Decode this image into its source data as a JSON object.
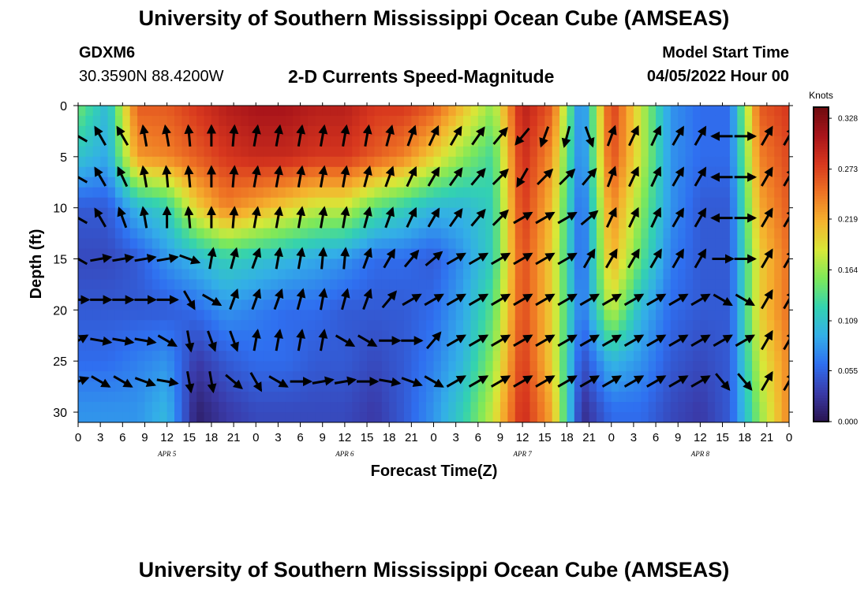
{
  "title": "University of Southern Mississippi Ocean Cube (AMSEAS)",
  "station": "GDXM6",
  "coords": "30.3590N  88.4200W",
  "subtitle": "2-D Currents Speed-Magnitude",
  "model_start_label": "Model Start Time",
  "model_start_value": "04/05/2022 Hour 00",
  "footer_title": "University of Southern Mississippi Ocean Cube (AMSEAS)",
  "chart_data": {
    "type": "heatmap",
    "xlabel": "Forecast Time(Z)",
    "ylabel": "Depth (ft)",
    "x_tick_labels": [
      "0",
      "3",
      "6",
      "9",
      "12",
      "15",
      "18",
      "21",
      "0",
      "3",
      "6",
      "9",
      "12",
      "15",
      "18",
      "21",
      "0",
      "3",
      "6",
      "9",
      "12",
      "15",
      "18",
      "21",
      "0",
      "3",
      "6",
      "9",
      "12",
      "15",
      "18",
      "21",
      "0"
    ],
    "x_hours_range": [
      0,
      96
    ],
    "day_labels": [
      {
        "label": "APR 5",
        "hour": 12
      },
      {
        "label": "APR 6",
        "hour": 36
      },
      {
        "label": "APR 7",
        "hour": 60
      },
      {
        "label": "APR 8",
        "hour": 84
      }
    ],
    "y_ticks": [
      "0",
      "5",
      "10",
      "15",
      "20",
      "25",
      "30"
    ],
    "y_range_ft": [
      0,
      31
    ],
    "colorbar": {
      "title": "Knots",
      "ticks": [
        "0.328",
        "0.273",
        "0.219",
        "0.164",
        "0.109",
        "0.055",
        "0.000"
      ],
      "range": [
        0.0,
        0.34
      ],
      "colors": [
        "#2a1450",
        "#3a3aa8",
        "#2f6ff0",
        "#33aee8",
        "#33d2b0",
        "#7de85a",
        "#d8e838",
        "#f5b32e",
        "#ee7424",
        "#d8381e",
        "#a8141a",
        "#6e0c10"
      ]
    },
    "speed_knots_grid": {
      "depths_ft": [
        0,
        5,
        10,
        15,
        20,
        25,
        30
      ],
      "hours": [
        0,
        4,
        8,
        12,
        16,
        20,
        24,
        28,
        32,
        36,
        40,
        44,
        48,
        52,
        56,
        60,
        64,
        68,
        72,
        76,
        80,
        84,
        88,
        92,
        96
      ],
      "values": [
        [
          0.15,
          0.1,
          0.26,
          0.26,
          0.28,
          0.3,
          0.31,
          0.31,
          0.3,
          0.3,
          0.28,
          0.28,
          0.26,
          0.21,
          0.16,
          0.3,
          0.26,
          0.06,
          0.28,
          0.18,
          0.08,
          0.06,
          0.06,
          0.26,
          0.28
        ],
        [
          0.11,
          0.09,
          0.23,
          0.24,
          0.26,
          0.28,
          0.29,
          0.29,
          0.28,
          0.28,
          0.26,
          0.24,
          0.2,
          0.16,
          0.13,
          0.29,
          0.23,
          0.06,
          0.27,
          0.18,
          0.08,
          0.06,
          0.06,
          0.24,
          0.27
        ],
        [
          0.05,
          0.05,
          0.1,
          0.12,
          0.2,
          0.24,
          0.22,
          0.2,
          0.18,
          0.18,
          0.14,
          0.12,
          0.1,
          0.1,
          0.12,
          0.28,
          0.21,
          0.05,
          0.24,
          0.16,
          0.08,
          0.05,
          0.05,
          0.22,
          0.26
        ],
        [
          0.04,
          0.04,
          0.05,
          0.08,
          0.1,
          0.12,
          0.11,
          0.1,
          0.09,
          0.08,
          0.06,
          0.06,
          0.05,
          0.08,
          0.12,
          0.27,
          0.2,
          0.05,
          0.22,
          0.14,
          0.07,
          0.05,
          0.05,
          0.2,
          0.25
        ],
        [
          0.05,
          0.05,
          0.05,
          0.05,
          0.06,
          0.08,
          0.07,
          0.06,
          0.06,
          0.05,
          0.05,
          0.05,
          0.06,
          0.09,
          0.14,
          0.27,
          0.2,
          0.06,
          0.18,
          0.1,
          0.06,
          0.05,
          0.05,
          0.2,
          0.25
        ],
        [
          0.06,
          0.06,
          0.07,
          0.08,
          0.03,
          0.05,
          0.06,
          0.06,
          0.05,
          0.05,
          0.04,
          0.05,
          0.07,
          0.1,
          0.16,
          0.28,
          0.2,
          0.04,
          0.1,
          0.08,
          0.05,
          0.04,
          0.05,
          0.18,
          0.24
        ],
        [
          0.08,
          0.08,
          0.08,
          0.1,
          0.01,
          0.03,
          0.04,
          0.04,
          0.04,
          0.04,
          0.03,
          0.05,
          0.08,
          0.12,
          0.18,
          0.29,
          0.22,
          0.02,
          0.06,
          0.06,
          0.04,
          0.03,
          0.05,
          0.16,
          0.24
        ]
      ]
    },
    "vectors": {
      "hours": [
        0,
        3,
        6,
        9,
        12,
        15,
        18,
        21,
        24,
        27,
        30,
        33,
        36,
        39,
        42,
        45,
        48,
        51,
        54,
        57,
        60,
        63,
        66,
        69,
        72,
        75,
        78,
        81,
        84,
        87,
        90,
        93,
        96
      ],
      "depths_ft": [
        3,
        7,
        11,
        15,
        19,
        23,
        27
      ],
      "direction_deg_to": [
        [
          300,
          330,
          330,
          350,
          350,
          355,
          0,
          5,
          10,
          10,
          10,
          10,
          10,
          10,
          15,
          20,
          25,
          30,
          35,
          40,
          220,
          200,
          195,
          160,
          20,
          25,
          25,
          30,
          30,
          270,
          90,
          30,
          30
        ],
        [
          300,
          330,
          335,
          350,
          355,
          355,
          0,
          5,
          10,
          10,
          10,
          10,
          10,
          15,
          20,
          25,
          30,
          35,
          40,
          45,
          210,
          45,
          45,
          40,
          20,
          25,
          25,
          30,
          30,
          270,
          90,
          30,
          30
        ],
        [
          300,
          330,
          340,
          350,
          0,
          355,
          0,
          5,
          10,
          10,
          10,
          10,
          10,
          15,
          20,
          25,
          30,
          35,
          40,
          45,
          60,
          60,
          60,
          50,
          25,
          25,
          25,
          30,
          30,
          270,
          90,
          30,
          30
        ],
        [
          300,
          80,
          80,
          80,
          80,
          110,
          10,
          15,
          20,
          10,
          10,
          5,
          5,
          20,
          30,
          40,
          50,
          60,
          60,
          60,
          60,
          60,
          60,
          30,
          30,
          30,
          30,
          30,
          30,
          90,
          90,
          30,
          30
        ],
        [
          90,
          90,
          90,
          90,
          90,
          150,
          120,
          20,
          20,
          20,
          15,
          10,
          15,
          20,
          40,
          60,
          60,
          60,
          60,
          60,
          60,
          60,
          60,
          60,
          60,
          60,
          60,
          60,
          60,
          120,
          120,
          30,
          30
        ],
        [
          60,
          100,
          100,
          100,
          120,
          170,
          160,
          160,
          10,
          10,
          10,
          10,
          120,
          120,
          90,
          90,
          40,
          60,
          60,
          60,
          60,
          60,
          60,
          60,
          60,
          60,
          60,
          60,
          60,
          60,
          60,
          30,
          30
        ],
        [
          70,
          120,
          120,
          110,
          100,
          170,
          170,
          130,
          150,
          120,
          90,
          80,
          80,
          90,
          100,
          110,
          120,
          60,
          60,
          60,
          60,
          60,
          60,
          60,
          60,
          60,
          60,
          60,
          60,
          140,
          140,
          30,
          30
        ]
      ]
    }
  }
}
